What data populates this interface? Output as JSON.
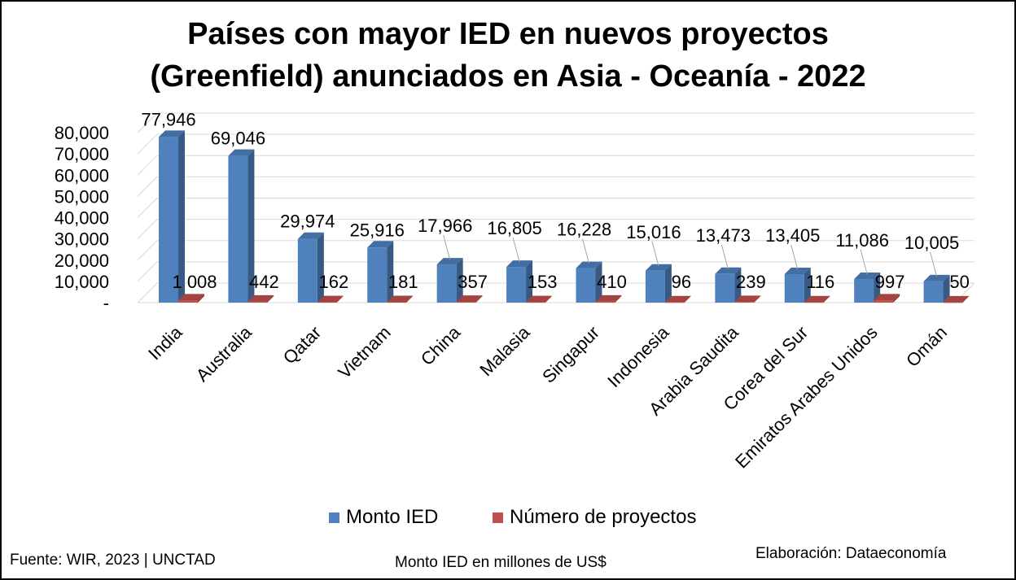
{
  "title_line1": "Países con mayor IED en nuevos proyectos",
  "title_line2": "(Greenfield) anunciados en Asia - Oceanía - 2022",
  "colors": {
    "monto": "#4F81BD",
    "proyectos": "#C0504D",
    "grid": "#D9D9D9"
  },
  "chart_data": {
    "type": "bar",
    "title": "Países con mayor IED en nuevos proyectos (Greenfield) anunciados en Asia - Oceanía - 2022",
    "categories": [
      "India",
      "Australia",
      "Qatar",
      "Vietnam",
      "China",
      "Malasia",
      "Singapur",
      "Indonesia",
      "Arabia Saudita",
      "Corea del Sur",
      "Emiratos Arabes Unidos",
      "Omán"
    ],
    "series": [
      {
        "name": "Monto IED",
        "values": [
          77946,
          69046,
          29974,
          25916,
          17966,
          16805,
          16228,
          15016,
          13473,
          13405,
          11086,
          10005
        ],
        "labels": [
          "77,946",
          "69,046",
          "29,974",
          "25,916",
          "17,966",
          "16,805",
          "16,228",
          "15,016",
          "13,473",
          "13,405",
          "11,086",
          "10,005"
        ]
      },
      {
        "name": "Número de proyectos",
        "values": [
          1008,
          442,
          162,
          181,
          357,
          153,
          410,
          96,
          239,
          116,
          997,
          50
        ],
        "labels": [
          "1 008",
          "442",
          "162",
          "181",
          "357",
          "153",
          "410",
          "96",
          "239",
          "116",
          "997",
          "50"
        ]
      }
    ],
    "ylim": [
      0,
      80000
    ],
    "yticks": [
      0,
      10000,
      20000,
      30000,
      40000,
      50000,
      60000,
      70000,
      80000
    ],
    "ytick_labels": [
      "-",
      "10,000",
      "20,000",
      "30,000",
      "40,000",
      "50,000",
      "60,000",
      "70,000",
      "80,000"
    ],
    "grid": true,
    "legend_position": "bottom"
  },
  "footer": {
    "source": "Fuente: WIR, 2023 | UNCTAD",
    "units": "Monto IED en millones de US$",
    "credit": "Elaboración: Dataeconomía"
  }
}
